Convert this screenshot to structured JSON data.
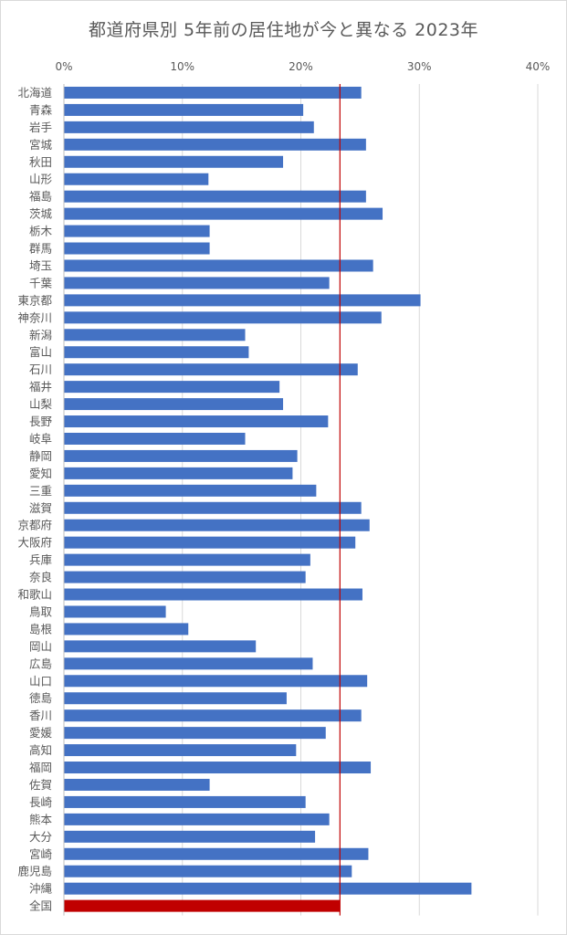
{
  "chart_data": {
    "type": "bar",
    "orientation": "horizontal",
    "title": "都道府県別 5年前の居住地が今と異なる 2023年",
    "xlim": [
      0,
      40
    ],
    "x_ticks": [
      "0%",
      "10%",
      "20%",
      "30%",
      "40%"
    ],
    "grid": true,
    "reference_line": {
      "value": 23.3,
      "color": "#c00000"
    },
    "colors": {
      "bar": "#4472c4",
      "highlight": "#c00000",
      "grid": "#d9d9d9"
    },
    "categories": [
      "北海道",
      "青森",
      "岩手",
      "宮城",
      "秋田",
      "山形",
      "福島",
      "茨城",
      "栃木",
      "群馬",
      "埼玉",
      "千葉",
      "東京都",
      "神奈川",
      "新潟",
      "富山",
      "石川",
      "福井",
      "山梨",
      "長野",
      "岐阜",
      "静岡",
      "愛知",
      "三重",
      "滋賀",
      "京都府",
      "大阪府",
      "兵庫",
      "奈良",
      "和歌山",
      "鳥取",
      "島根",
      "岡山",
      "広島",
      "山口",
      "徳島",
      "香川",
      "愛媛",
      "高知",
      "福岡",
      "佐賀",
      "長崎",
      "熊本",
      "大分",
      "宮崎",
      "鹿児島",
      "沖縄",
      "全国"
    ],
    "values": [
      25.1,
      20.2,
      21.1,
      25.5,
      18.5,
      12.2,
      25.5,
      26.9,
      12.3,
      12.3,
      26.1,
      22.4,
      30.1,
      26.8,
      15.3,
      15.6,
      24.8,
      18.2,
      18.5,
      22.3,
      15.3,
      19.7,
      19.3,
      21.3,
      25.1,
      25.8,
      24.6,
      20.8,
      20.4,
      25.2,
      8.6,
      10.5,
      16.2,
      21.0,
      25.6,
      18.8,
      25.1,
      22.1,
      19.6,
      25.9,
      12.3,
      20.4,
      22.4,
      21.2,
      25.7,
      24.3,
      34.4,
      23.3
    ],
    "highlight_category": "全国"
  }
}
